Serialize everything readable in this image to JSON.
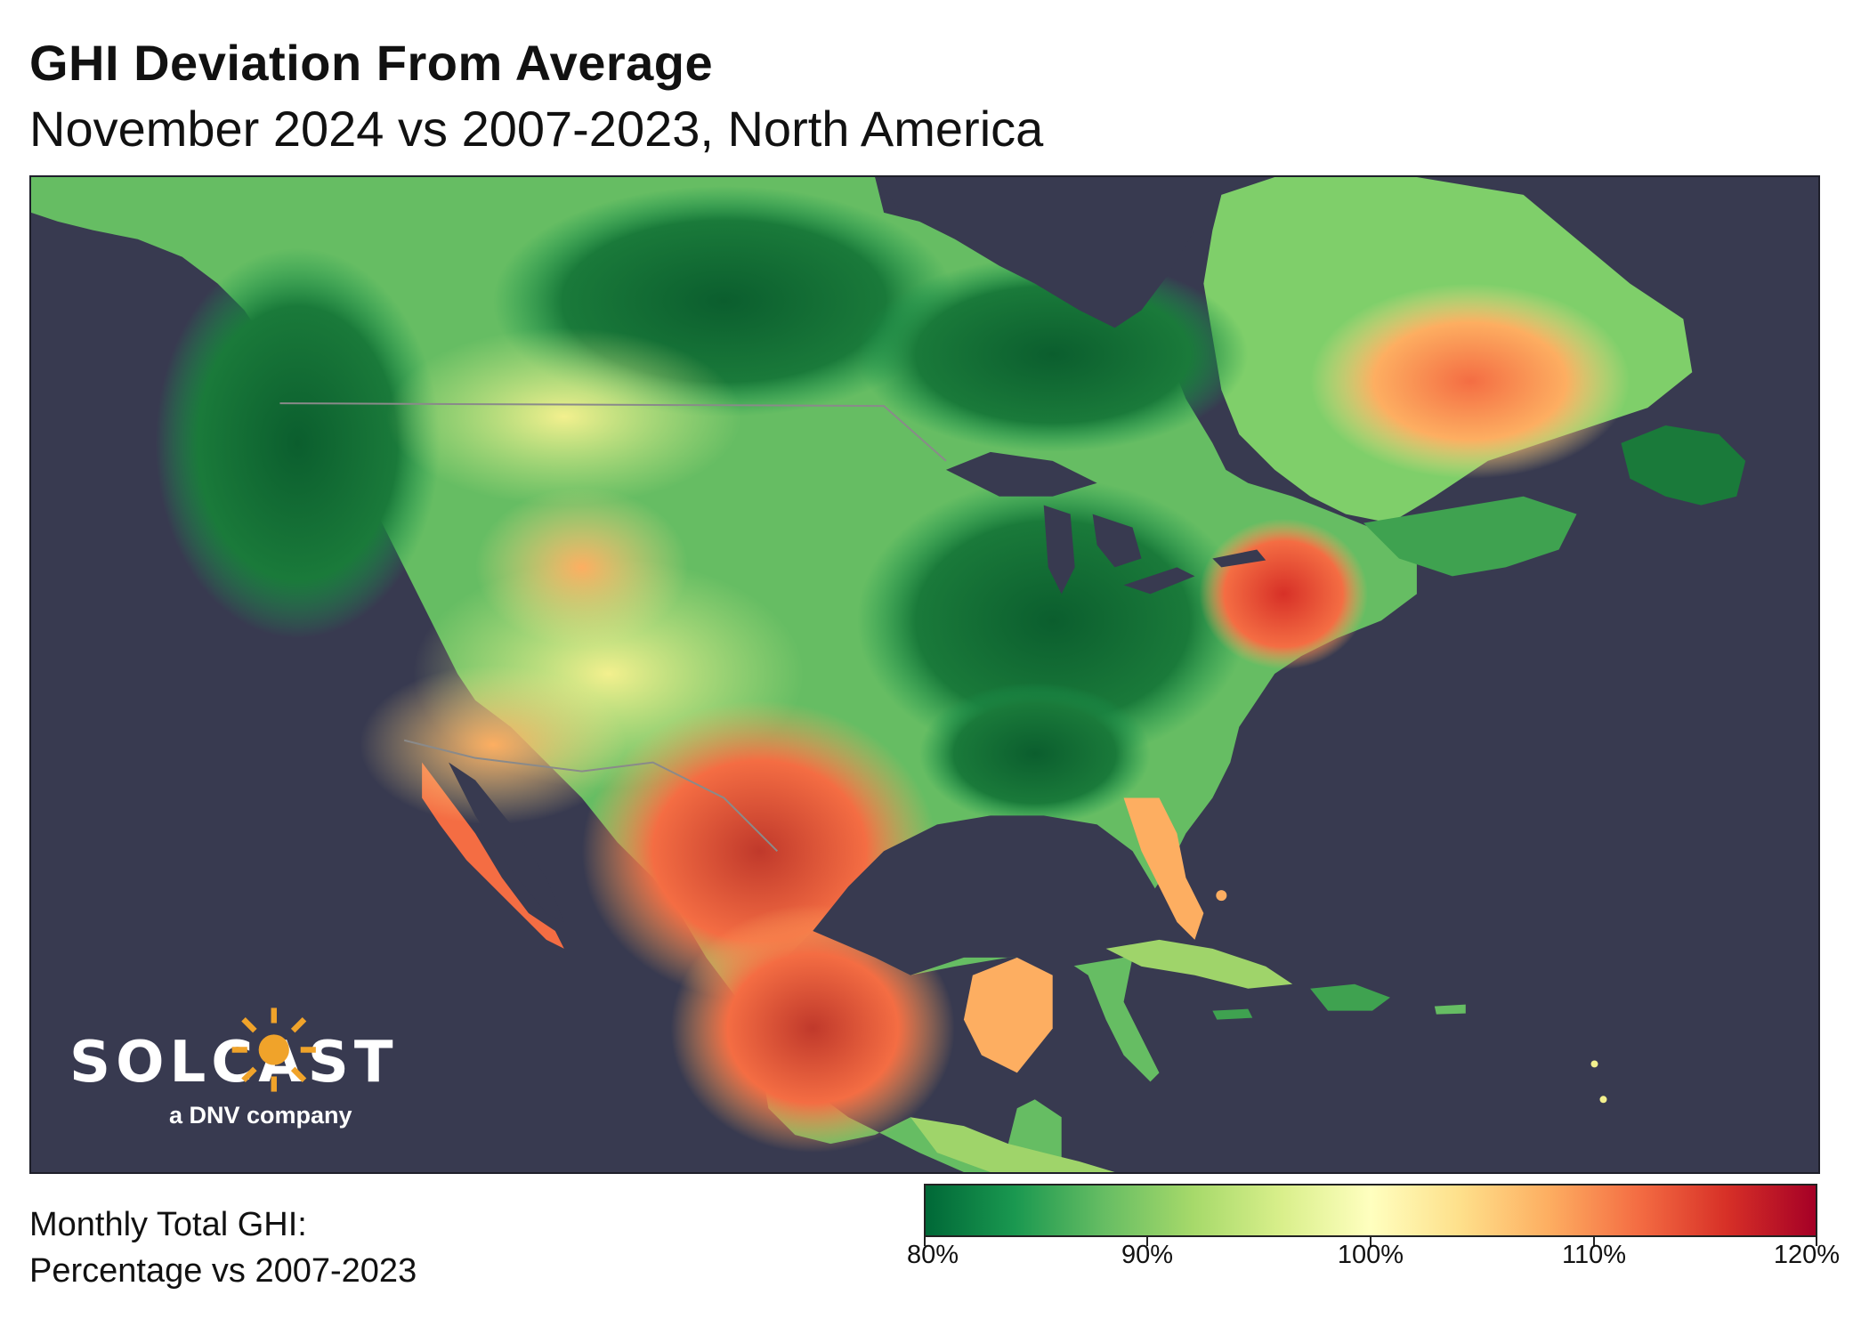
{
  "header": {
    "title": "GHI Deviation From Average",
    "subtitle": "November 2024 vs 2007-2023, North America"
  },
  "logo": {
    "wordmark": "SOLCAST",
    "tagline": "a DNV company"
  },
  "legend": {
    "caption_line1": "Monthly Total GHI:",
    "caption_line2": "Percentage vs 2007-2023",
    "colorbar_ticks": [
      "80%",
      "90%",
      "100%",
      "110%",
      "120%"
    ],
    "colors": [
      "#006837",
      "#1a9850",
      "#66bd63",
      "#a6d96a",
      "#d9ef8b",
      "#ffffbf",
      "#fee08b",
      "#fdae61",
      "#f46d43",
      "#d73027",
      "#a50026"
    ]
  },
  "map": {
    "ocean_color": "#383a50",
    "region": "North America"
  }
}
